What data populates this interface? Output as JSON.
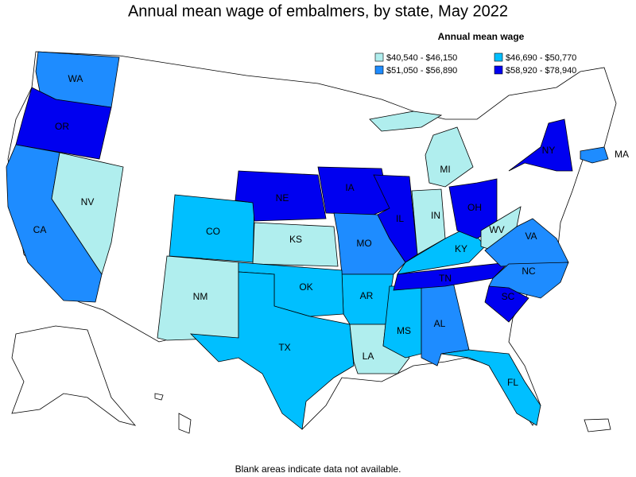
{
  "title": "Annual mean wage of embalmers, by state, May 2022",
  "legend": {
    "title": "Annual mean wage",
    "items": [
      {
        "label": "$40,540 - $46,150",
        "color": "#b0eeee"
      },
      {
        "label": "$46,690 - $50,770",
        "color": "#00bfff"
      },
      {
        "label": "$51,050 - $56,890",
        "color": "#1e8cff"
      },
      {
        "label": "$58,920 - $78,940",
        "color": "#0000f0"
      }
    ]
  },
  "states": [
    {
      "label": "WA",
      "color": "#1e8cff"
    },
    {
      "label": "OR",
      "color": "#0000f0"
    },
    {
      "label": "CA",
      "color": "#1e8cff"
    },
    {
      "label": "NV",
      "color": "#b0eeee"
    },
    {
      "label": "CO",
      "color": "#00bfff"
    },
    {
      "label": "NM",
      "color": "#b0eeee"
    },
    {
      "label": "KS",
      "color": "#b0eeee"
    },
    {
      "label": "NE",
      "color": "#0000f0"
    },
    {
      "label": "IA",
      "color": "#0000f0"
    },
    {
      "label": "MO",
      "color": "#1e8cff"
    },
    {
      "label": "AR",
      "color": "#00bfff"
    },
    {
      "label": "OK",
      "color": "#00bfff"
    },
    {
      "label": "TX",
      "color": "#00bfff"
    },
    {
      "label": "LA",
      "color": "#b0eeee"
    },
    {
      "label": "MS",
      "color": "#00bfff"
    },
    {
      "label": "AL",
      "color": "#1e8cff"
    },
    {
      "label": "FL",
      "color": "#00bfff"
    },
    {
      "label": "TN",
      "color": "#0000f0"
    },
    {
      "label": "KY",
      "color": "#00bfff"
    },
    {
      "label": "IL",
      "color": "#0000f0"
    },
    {
      "label": "IN",
      "color": "#b0eeee"
    },
    {
      "label": "MI",
      "color": "#b0eeee"
    },
    {
      "label": "OH",
      "color": "#0000f0"
    },
    {
      "label": "WV",
      "color": "#b0eeee"
    },
    {
      "label": "VA",
      "color": "#1e8cff"
    },
    {
      "label": "NC",
      "color": "#1e8cff"
    },
    {
      "label": "SC",
      "color": "#0000f0"
    },
    {
      "label": "NY",
      "color": "#0000f0"
    },
    {
      "label": "MA",
      "color": "#1e8cff"
    }
  ],
  "footnote": "Blank areas indicate data not available."
}
